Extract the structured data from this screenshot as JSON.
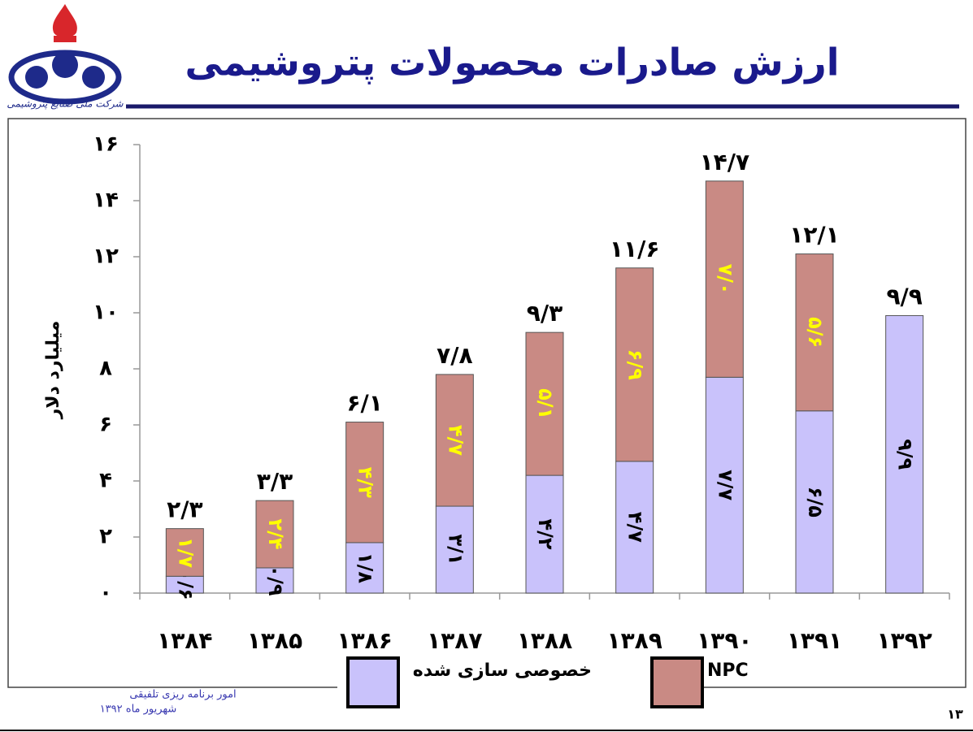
{
  "logo_text": "شرکت ملی صنایع پتروشیمی",
  "footer": {
    "department": "امور برنامه ریزی تلفیقی",
    "date": "شهریور ماه ۱۳۹۲",
    "page_number": "۱۳"
  },
  "chart_data": {
    "type": "stacked-bar",
    "title": "ارزش صادرات محصولات پتروشیمی",
    "y_label": "میلیارد دلار",
    "categories": [
      "۱۳۸۴",
      "۱۳۸۵",
      "۱۳۸۶",
      "۱۳۸۷",
      "۱۳۸۸",
      "۱۳۸۹",
      "۱۳۹۰",
      "۱۳۹۱",
      "۱۳۹۲"
    ],
    "series": [
      {
        "name": "خصوصی سازی شده",
        "color": "#c9c2fb",
        "label_color": "#000000",
        "values": [
          0.6,
          0.9,
          1.8,
          3.1,
          4.2,
          4.7,
          7.7,
          6.5,
          9.9
        ],
        "value_labels": [
          "۰/۶",
          "۰/۹",
          "۱/۸",
          "۳/۱",
          "۴/۲",
          "۴/۷",
          "۷/۷",
          "۶/۵",
          "۹/۹"
        ]
      },
      {
        "name": "NPC",
        "color": "#c98a84",
        "label_color": "#ffff00",
        "values": [
          1.7,
          2.4,
          4.3,
          4.7,
          5.1,
          6.9,
          7.0,
          5.6,
          null
        ],
        "value_labels": [
          "۱/۷",
          "۲/۴",
          "۴/۳",
          "۴/۷",
          "۵/۱",
          "۶/۹",
          "۷/۰",
          "۵/۶",
          null
        ]
      }
    ],
    "totals": {
      "values": [
        2.3,
        3.3,
        6.1,
        7.8,
        9.3,
        11.6,
        14.7,
        12.1,
        9.9
      ],
      "value_labels": [
        "۲/۳",
        "۳/۳",
        "۶/۱",
        "۷/۸",
        "۹/۳",
        "۱۱/۶",
        "۱۴/۷",
        "۱۲/۱",
        "۹/۹"
      ]
    },
    "ylim": [
      0,
      16
    ],
    "yticks": [
      {
        "value": 0,
        "label": "۰"
      },
      {
        "value": 2,
        "label": "۲"
      },
      {
        "value": 4,
        "label": "۴"
      },
      {
        "value": 6,
        "label": "۶"
      },
      {
        "value": 8,
        "label": "۸"
      },
      {
        "value": 10,
        "label": "۱۰"
      },
      {
        "value": 12,
        "label": "۱۲"
      },
      {
        "value": 14,
        "label": "۱۴"
      },
      {
        "value": 16,
        "label": "۱۶"
      }
    ],
    "grid": false
  }
}
